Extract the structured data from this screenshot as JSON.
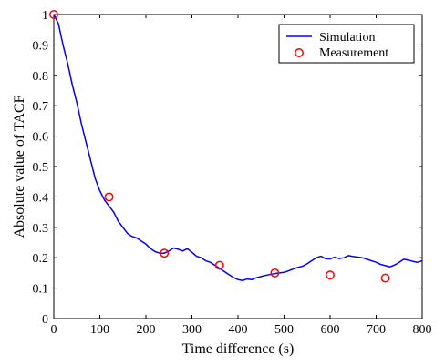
{
  "chart_data": {
    "type": "line",
    "title": "",
    "xlabel": "Time difference (s)",
    "ylabel": "Absolute value of TACF",
    "xlim": [
      0,
      800
    ],
    "ylim": [
      0,
      1
    ],
    "xticks": [
      "0",
      "100",
      "200",
      "300",
      "400",
      "500",
      "600",
      "700",
      "800"
    ],
    "yticks": [
      "0",
      "0.1",
      "0.2",
      "0.3",
      "0.4",
      "0.5",
      "0.6",
      "0.7",
      "0.8",
      "0.9",
      "1"
    ],
    "grid": false,
    "legend_position": "top-right",
    "series": [
      {
        "name": "Simulation",
        "style": "line",
        "color": "#0000ff",
        "x": [
          0,
          10,
          20,
          30,
          40,
          50,
          60,
          70,
          80,
          90,
          100,
          110,
          120,
          130,
          140,
          150,
          160,
          170,
          180,
          190,
          200,
          210,
          220,
          230,
          240,
          250,
          260,
          270,
          280,
          290,
          300,
          310,
          320,
          330,
          340,
          350,
          360,
          370,
          380,
          390,
          400,
          410,
          420,
          430,
          440,
          450,
          460,
          470,
          480,
          490,
          500,
          510,
          520,
          530,
          540,
          550,
          560,
          570,
          580,
          590,
          600,
          610,
          620,
          630,
          640,
          650,
          660,
          670,
          680,
          690,
          700,
          710,
          720,
          730,
          740,
          750,
          760,
          770,
          780,
          790,
          800
        ],
        "y": [
          1.0,
          0.97,
          0.9,
          0.84,
          0.77,
          0.71,
          0.64,
          0.58,
          0.52,
          0.46,
          0.42,
          0.39,
          0.37,
          0.35,
          0.32,
          0.3,
          0.28,
          0.27,
          0.265,
          0.255,
          0.245,
          0.23,
          0.22,
          0.215,
          0.215,
          0.222,
          0.232,
          0.228,
          0.222,
          0.23,
          0.218,
          0.205,
          0.2,
          0.19,
          0.185,
          0.175,
          0.165,
          0.155,
          0.145,
          0.135,
          0.128,
          0.125,
          0.13,
          0.128,
          0.134,
          0.138,
          0.142,
          0.145,
          0.148,
          0.15,
          0.152,
          0.157,
          0.163,
          0.168,
          0.172,
          0.18,
          0.19,
          0.2,
          0.205,
          0.197,
          0.196,
          0.202,
          0.197,
          0.2,
          0.207,
          0.204,
          0.202,
          0.2,
          0.195,
          0.19,
          0.185,
          0.178,
          0.174,
          0.17,
          0.176,
          0.185,
          0.195,
          0.192,
          0.188,
          0.185,
          0.19
        ]
      },
      {
        "name": "Measurement",
        "style": "marker",
        "color": "#ff0000",
        "x": [
          0,
          120,
          240,
          360,
          480,
          600,
          720
        ],
        "y": [
          1.0,
          0.4,
          0.215,
          0.175,
          0.15,
          0.143,
          0.133
        ]
      }
    ]
  }
}
